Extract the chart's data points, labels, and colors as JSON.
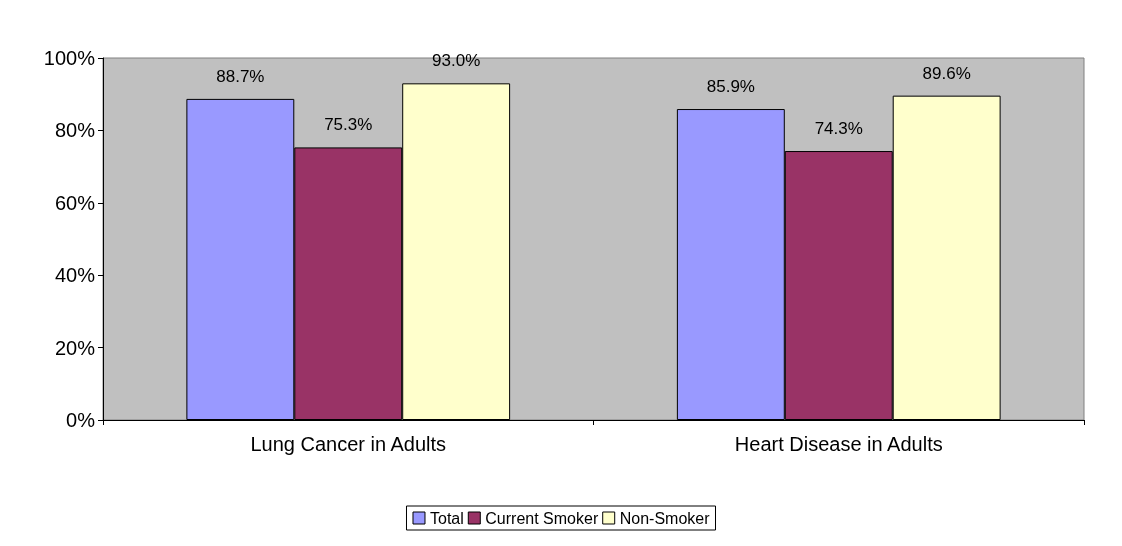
{
  "chart_data": {
    "type": "bar",
    "categories": [
      "Lung Cancer in Adults",
      "Heart Disease in Adults"
    ],
    "series": [
      {
        "name": "Total",
        "color": "#9999ff",
        "values": [
          88.7,
          85.9
        ],
        "value_labels": [
          "88.7%",
          "85.9%"
        ]
      },
      {
        "name": "Current Smoker",
        "color": "#993366",
        "values": [
          75.3,
          74.3
        ],
        "value_labels": [
          "75.3%",
          "74.3%"
        ]
      },
      {
        "name": "Non-Smoker",
        "color": "#ffffcc",
        "values": [
          93.0,
          89.6
        ],
        "value_labels": [
          "93.0%",
          "89.6%"
        ]
      }
    ],
    "ylim": [
      0,
      100
    ],
    "yticks": [
      {
        "value": 0,
        "label": "0%"
      },
      {
        "value": 20,
        "label": "20%"
      },
      {
        "value": 40,
        "label": "40%"
      },
      {
        "value": 60,
        "label": "60%"
      },
      {
        "value": 80,
        "label": "80%"
      },
      {
        "value": 100,
        "label": "100%"
      }
    ],
    "grid": false,
    "legend": "bottom"
  }
}
